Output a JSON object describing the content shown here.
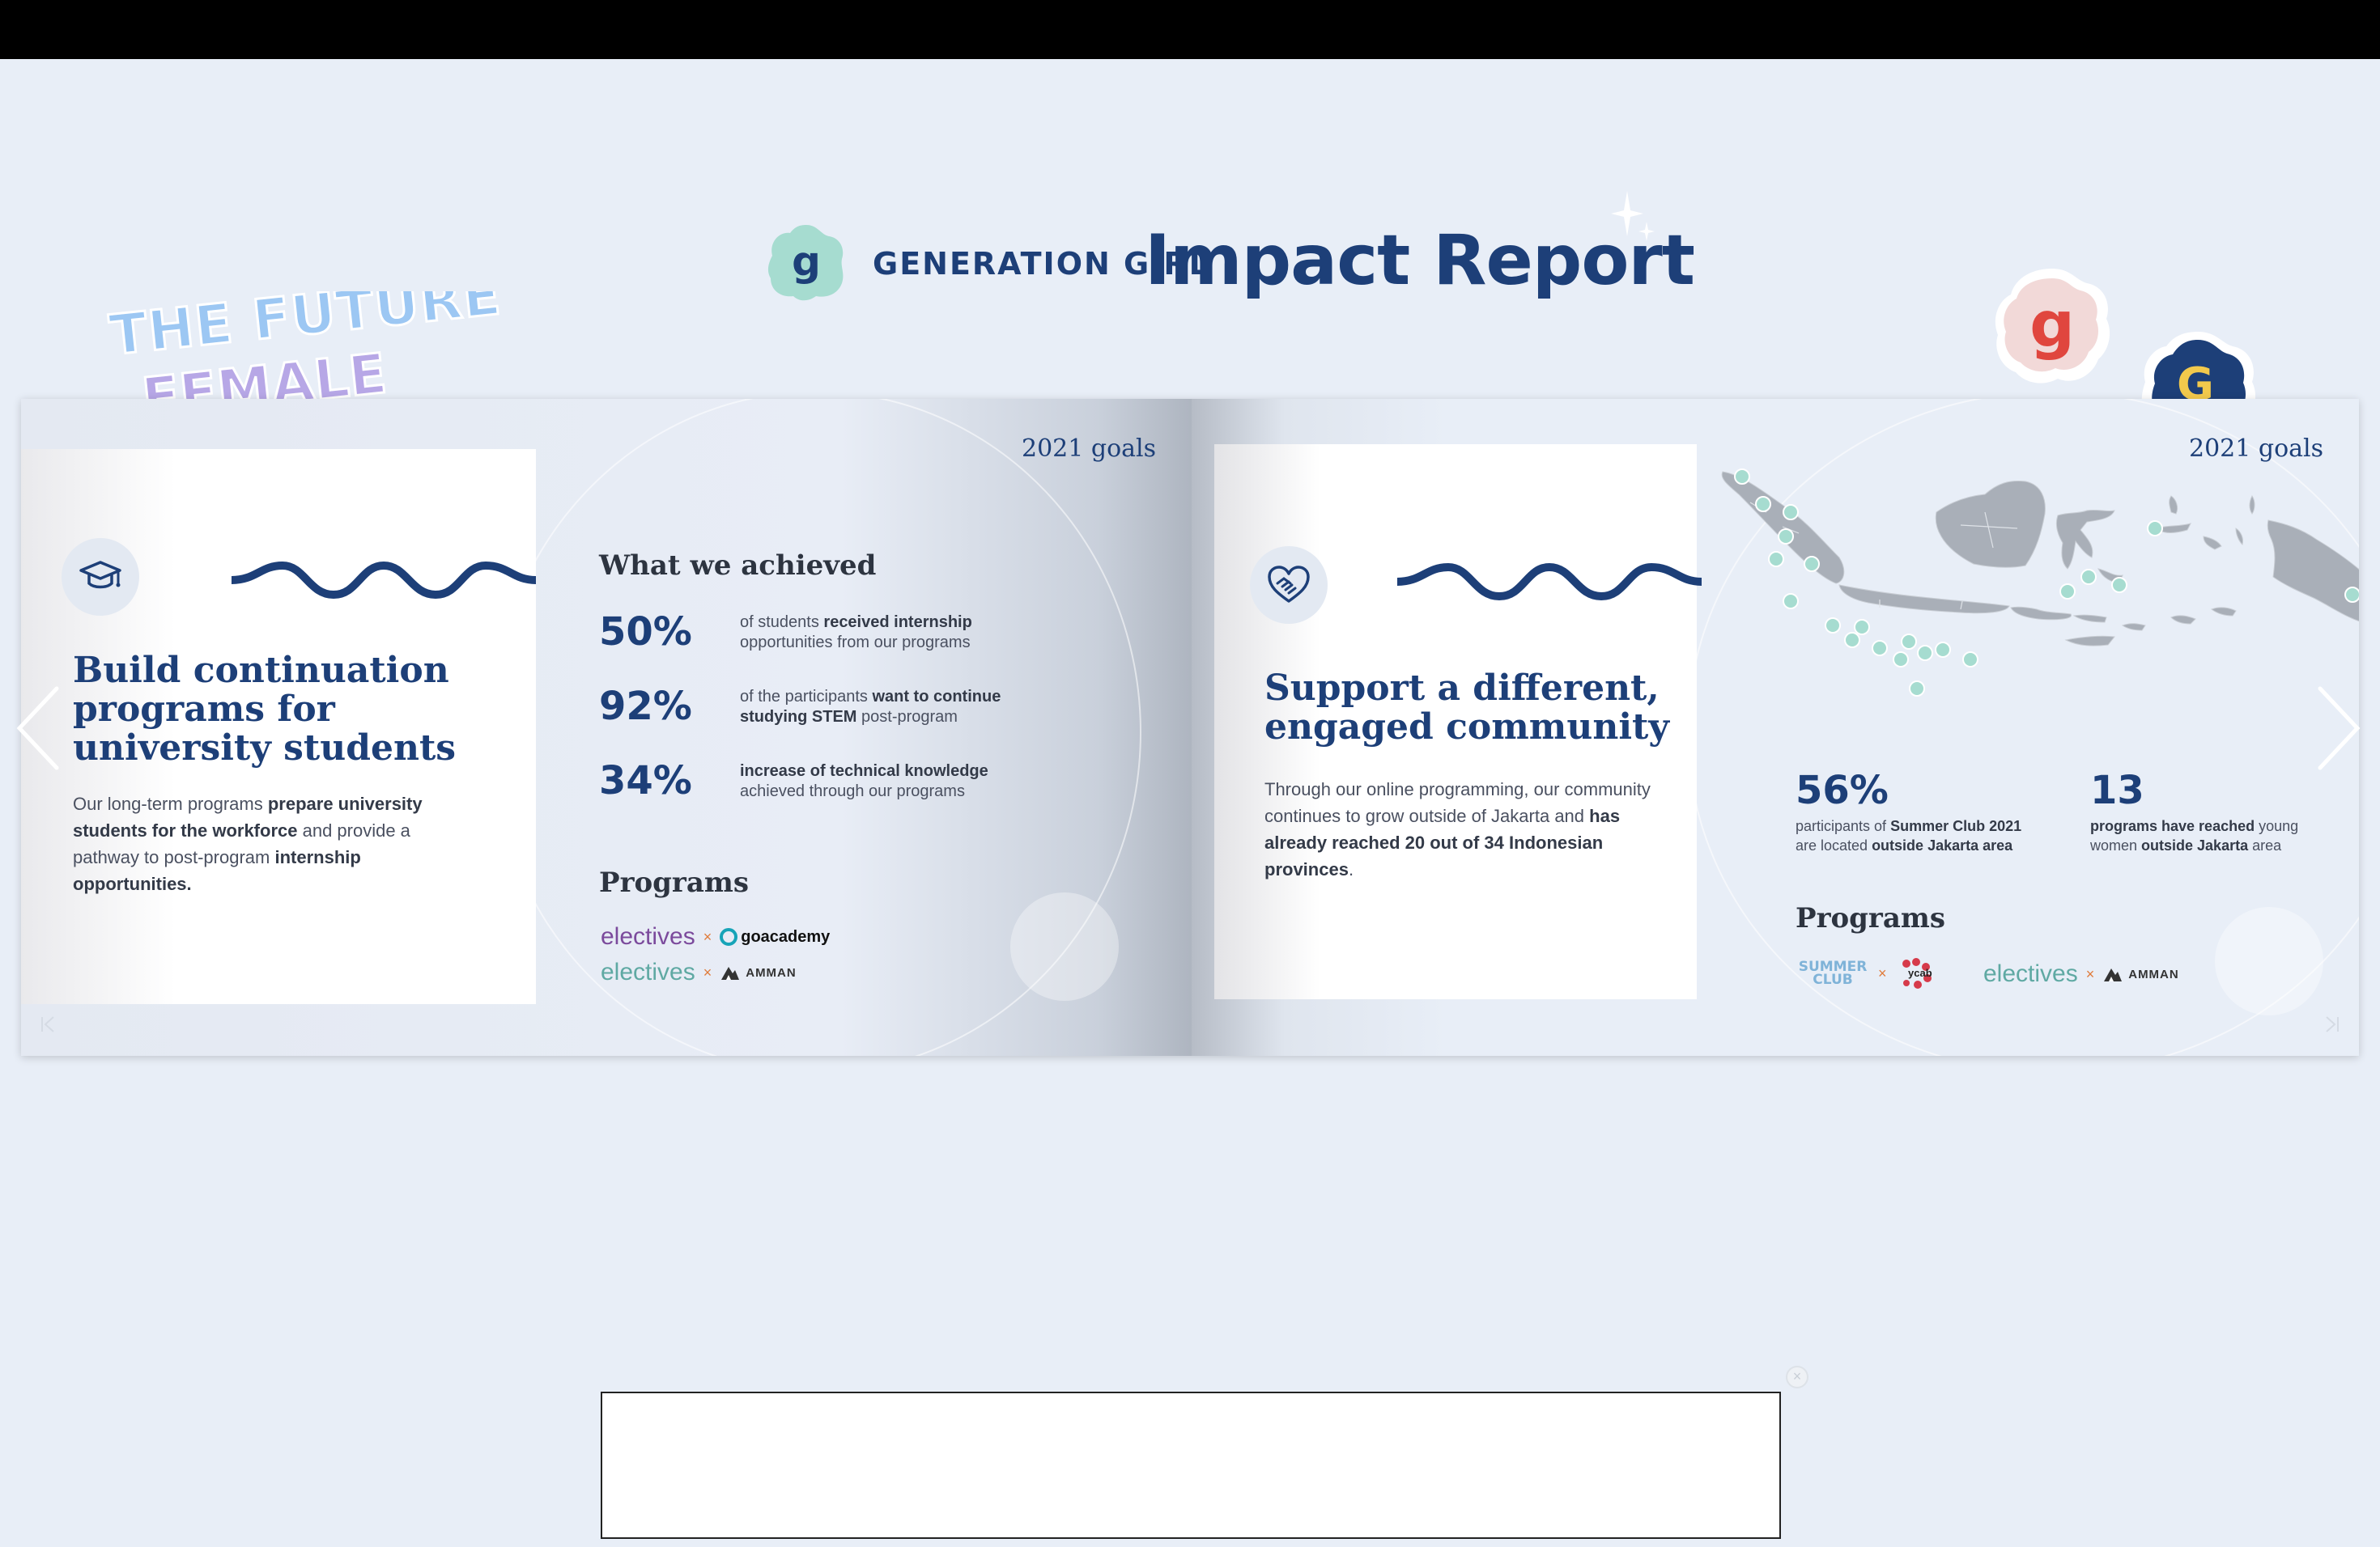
{
  "header": {
    "brand": "GENERATION GIRL",
    "title": "Impact Report",
    "logo_letter": "g"
  },
  "stickers": {
    "future_line1": "THE FUTURE",
    "future_line2": "FEMALE",
    "red_letter": "g",
    "blue_letter": "G"
  },
  "left_page": {
    "goals_label": "2021 goals",
    "card": {
      "icon": "graduation-cap-icon",
      "title": "Build continuation programs for university students",
      "body_parts": [
        "Our long-term programs ",
        "prepare university students for the workforce",
        " and provide a pathway to post-program ",
        "internship opportunities."
      ]
    },
    "achieved_heading": "What we achieved",
    "stats": [
      {
        "value": "50%",
        "text_pre": "of students ",
        "text_bold": "received internship",
        "text_post": " opportunities from our programs"
      },
      {
        "value": "92%",
        "text_pre": "of the participants ",
        "text_bold": "want to continue studying STEM",
        "text_post": " post-program"
      },
      {
        "value": "34%",
        "text_pre": "",
        "text_bold": "increase of technical knowledge",
        "text_post": " achieved through our programs"
      }
    ],
    "programs_heading": "Programs",
    "programs": [
      {
        "left": "electives",
        "x": "×",
        "right": "goacademy"
      },
      {
        "left": "electives",
        "x": "×",
        "right": "AMMAN"
      }
    ]
  },
  "right_page": {
    "goals_label": "2021 goals",
    "card": {
      "icon": "handshake-heart-icon",
      "title": "Support a different, engaged community",
      "body_parts": [
        "Through our online programming, our community continues to grow outside of Jakarta and ",
        "has already reached 20 out of 34 Indonesian provinces",
        "."
      ]
    },
    "stats": [
      {
        "value": "56%",
        "l1_pre": "participants of ",
        "l1_bold": "Summer Club 2021",
        "l2_pre": "are located ",
        "l2_bold": "outside Jakarta area"
      },
      {
        "value": "13",
        "l1_pre": "",
        "l1_bold": "programs have reached",
        "l1_post": " young",
        "l2_pre": "women ",
        "l2_bold": "outside Jakarta",
        "l2_post": " area"
      }
    ],
    "programs_heading": "Programs",
    "programs": [
      {
        "left": "SUMMER CLUB",
        "x": "×",
        "right": "ycab"
      },
      {
        "left": "electives",
        "x": "×",
        "right": "AMMAN"
      }
    ]
  },
  "colors": {
    "navy": "#1d3f78",
    "mint": "#a6dcd0",
    "electives_purple": "#7b4a9c",
    "electives_teal": "#5fa9a3",
    "accent_orange": "#e07b3a",
    "background": "#e8eef7"
  },
  "ad": {
    "close_label": "×"
  }
}
